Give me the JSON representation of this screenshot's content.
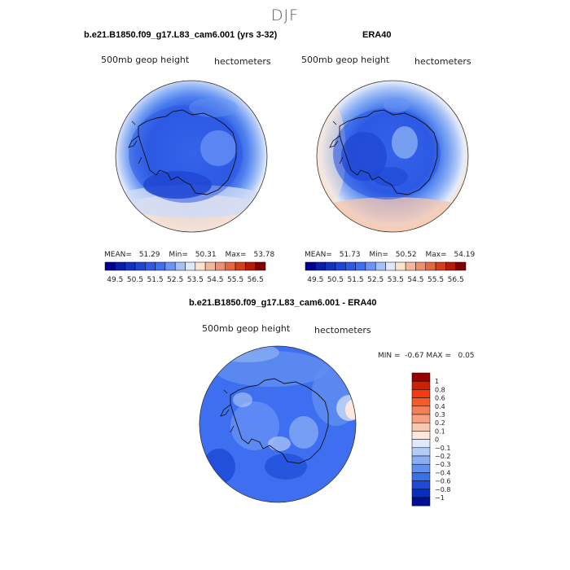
{
  "figure_title": "DJF",
  "panels": [
    {
      "title": "b.e21.B1850.f09_g17.L83_cam6.001 (yrs 3-32)",
      "left_label": "500mb geop height",
      "right_label": "hectometers",
      "stats": {
        "mean_label": "MEAN=",
        "mean": "51.29",
        "min_label": "Min=",
        "min": "50.31",
        "max_label": "Max=",
        "max": "53.78"
      }
    },
    {
      "title": "ERA40",
      "left_label": "500mb geop height",
      "right_label": "hectometers",
      "stats": {
        "mean_label": "MEAN=",
        "mean": "51.73",
        "min_label": "Min=",
        "min": "50.52",
        "max_label": "Max=",
        "max": "54.19"
      }
    },
    {
      "title": "b.e21.B1850.f09_g17.L83_cam6.001 - ERA40",
      "left_label": "500mb geop height",
      "right_label": "hectometers",
      "stats_text": "MIN =  -0.67 MAX =   0.05"
    }
  ],
  "colorbar_top": {
    "labels": [
      "49.5",
      "50.5",
      "51.5",
      "52.5",
      "53.5",
      "54.5",
      "55.5",
      "56.5"
    ],
    "colors": [
      "#00008f",
      "#0a1ea8",
      "#1432c0",
      "#1e46d2",
      "#2d5ae4",
      "#3e6ff0",
      "#6a94f5",
      "#a7c1f8",
      "#dfe9fb",
      "#fbe3d0",
      "#f6b89a",
      "#ef8f6f",
      "#e4673f",
      "#d23d1a",
      "#b31a08",
      "#7f0000"
    ]
  },
  "colorbar_diff": {
    "labels": [
      "1",
      "0.8",
      "0.6",
      "0.4",
      "0.3",
      "0.2",
      "0.1",
      "0",
      "-0.1",
      "-0.2",
      "-0.3",
      "-0.4",
      "-0.6",
      "-0.8",
      "-1"
    ],
    "colors": [
      "#990000",
      "#cc2200",
      "#f03c10",
      "#f55a2a",
      "#f47e55",
      "#f5a283",
      "#f8c8b0",
      "#fce8dc",
      "#dfe9fb",
      "#b5cbf7",
      "#8aaef4",
      "#5f8ff0",
      "#3b6fe8",
      "#1d4bd6",
      "#0a2fc0",
      "#00108f"
    ]
  },
  "chart_data": [
    {
      "type": "heatmap",
      "title": "b.e21.B1850.f09_g17.L83_cam6.001 (yrs 3-32)",
      "variable": "500mb geop height",
      "units": "hectometers",
      "mean": 51.29,
      "min": 50.31,
      "max": 53.78,
      "contour_levels": [
        49.5,
        50.5,
        51.5,
        52.5,
        53.5,
        54.5,
        55.5,
        56.5
      ]
    },
    {
      "type": "heatmap",
      "title": "ERA40",
      "variable": "500mb geop height",
      "units": "hectometers",
      "mean": 51.73,
      "min": 50.52,
      "max": 54.19,
      "contour_levels": [
        49.5,
        50.5,
        51.5,
        52.5,
        53.5,
        54.5,
        55.5,
        56.5
      ]
    },
    {
      "type": "heatmap",
      "title": "b.e21.B1850.f09_g17.L83_cam6.001 - ERA40",
      "variable": "500mb geop height",
      "units": "hectometers",
      "min": -0.67,
      "max": 0.05,
      "contour_levels": [
        -1,
        -0.8,
        -0.6,
        -0.4,
        -0.3,
        -0.2,
        -0.1,
        0,
        0.1,
        0.2,
        0.3,
        0.4,
        0.6,
        0.8,
        1
      ]
    }
  ]
}
